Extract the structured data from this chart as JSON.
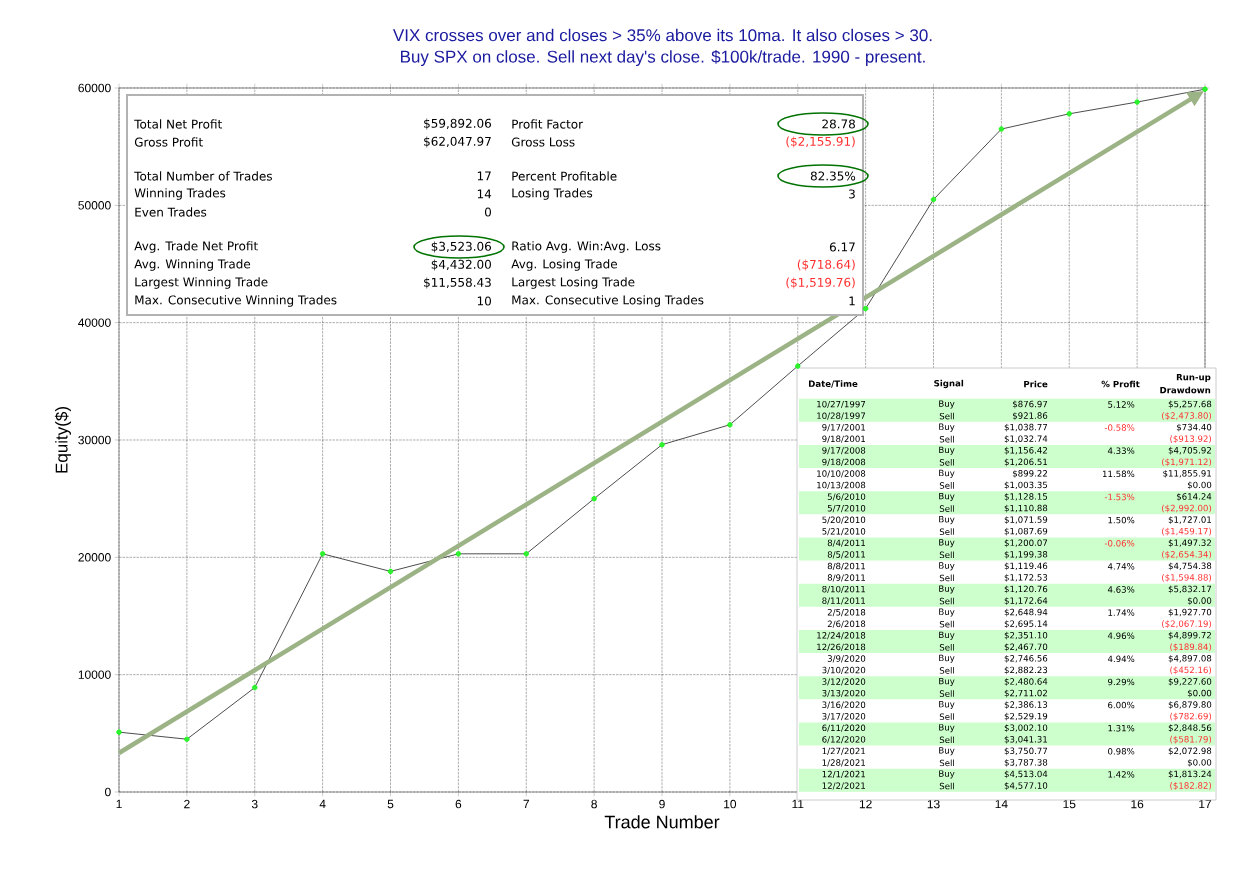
{
  "chart_data": {
    "type": "line",
    "title": "VIX crosses over and closes > 35% above its 10ma. It also closes > 30.",
    "subtitle": "Buy SPX on close. Sell next day's close. $100k/trade. 1990 - present.",
    "xlabel": "Trade Number",
    "ylabel": "Equity($)",
    "xlim": [
      1,
      17
    ],
    "ylim": [
      0,
      60000
    ],
    "xticks": [
      1,
      2,
      3,
      4,
      5,
      6,
      7,
      8,
      9,
      10,
      11,
      12,
      13,
      14,
      15,
      16,
      17
    ],
    "yticks": [
      0,
      10000,
      20000,
      30000,
      40000,
      50000,
      60000
    ],
    "grid": true,
    "marker": "circle",
    "series": [
      {
        "color": "#000000",
        "x": [
          1,
          2,
          3,
          4,
          5,
          6,
          7,
          8,
          9,
          10,
          11,
          12,
          13,
          14,
          15,
          16,
          17
        ],
        "values": [
          5100,
          4500,
          8900,
          20300,
          18800,
          20300,
          20300,
          25000,
          29600,
          31300,
          36300,
          41200,
          50500,
          56500,
          57800,
          58800,
          59900
        ]
      }
    ],
    "annotations": [
      "Total Net Profit",
      "$59,892.06",
      "Profit Factor",
      "28.78",
      "Gross Profit",
      "$62,047.97",
      "Gross Loss",
      "($2,155.91)",
      "Total Number of Trades",
      "17",
      "Percent Profitable",
      "82.35%",
      "Winning Trades",
      "14",
      "Losing Trades",
      "3",
      "Even Trades",
      "0",
      "Avg. Trade Net Profit",
      "$3,523.06",
      "Ratio Avg. Win:Avg. Loss",
      "6.17",
      "Avg. Winning Trade",
      "$4,432.00",
      "Avg. Losing Trade",
      "($718.64)",
      "Largest Winning Trade",
      "$11,558.43",
      "Largest Losing Trade",
      "($1,519.76)",
      "Max. Consecutive Winning Trades",
      "10",
      "Max. Consecutive Losing Trades",
      "1",
      "Date/Time",
      "Signal",
      "Price",
      "% Profit",
      "Run-up",
      "Drawdown",
      "10/27/1997",
      "Buy",
      "$876.97",
      "5.12%",
      "$5,257.68",
      "10/28/1997",
      "Sell",
      "$921.86",
      "($2,473.80)",
      "9/17/2001",
      "Buy",
      "$1,038.77",
      "-0.58%",
      "$734.40",
      "9/18/2001",
      "Sell",
      "$1,032.74",
      "($913.92)",
      "9/17/2008",
      "Buy",
      "$1,156.42",
      "4.33%",
      "$4,705.92",
      "9/18/2008",
      "Sell",
      "$1,206.51",
      "($1,971.12)",
      "10/10/2008",
      "Buy",
      "$899.22",
      "11.58%",
      "$11,855.91",
      "10/13/2008",
      "Sell",
      "$1,003.35",
      "$0.00",
      "5/6/2010",
      "Buy",
      "$1,128.15",
      "-1.53%",
      "$614.24",
      "5/7/2010",
      "Sell",
      "$1,110.88",
      "($2,992.00)",
      "5/20/2010",
      "Buy",
      "$1,071.59",
      "1.50%",
      "$1,727.01",
      "5/21/2010",
      "Sell",
      "$1,087.69",
      "($1,459.17)",
      "8/4/2011",
      "Buy",
      "$1,200.07",
      "-0.06%",
      "$1,497.32",
      "8/5/2011",
      "Sell",
      "$1,199.38",
      "($2,654.34)",
      "8/8/2011",
      "Buy",
      "$1,119.46",
      "4.74%",
      "$4,754.38",
      "8/9/2011",
      "Sell",
      "$1,172.53",
      "($1,594.88)",
      "8/10/2011",
      "Buy",
      "$1,120.76",
      "4.63%",
      "$5,832.17",
      "8/11/2011",
      "Sell",
      "$1,172.64",
      "$0.00",
      "2/5/2018",
      "Buy",
      "$2,648.94",
      "1.74%",
      "$1,927.70",
      "2/6/2018",
      "Sell",
      "$2,695.14",
      "($2,067.19)",
      "12/24/2018",
      "Buy",
      "$2,351.10",
      "4.96%",
      "$4,899.72",
      "12/26/2018",
      "Sell",
      "$2,467.70",
      "($189.84)",
      "3/9/2020",
      "Buy",
      "$2,746.56",
      "4.94%",
      "$4,897.08",
      "3/10/2020",
      "Sell",
      "$2,882.23",
      "($452.16)",
      "3/12/2020",
      "Buy",
      "$2,480.64",
      "9.29%",
      "$9,227.60",
      "3/13/2020",
      "Sell",
      "$2,711.02",
      "$0.00",
      "3/16/2020",
      "Buy",
      "$2,386.13",
      "6.00%",
      "$6,879.80",
      "3/17/2020",
      "Sell",
      "$2,529.19",
      "($782.69)",
      "6/11/2020",
      "Buy",
      "$3,002.10",
      "1.31%",
      "$2,848.56",
      "6/12/2020",
      "Sell",
      "$3,041.31",
      "($581.79)",
      "1/27/2021",
      "Buy",
      "$3,750.77",
      "0.98%",
      "$2,072.98",
      "1/28/2021",
      "Sell",
      "$3,787.38",
      "$0.00",
      "12/1/2021",
      "Buy",
      "$4,513.04",
      "1.42%",
      "$1,813.24",
      "12/2/2021",
      "Sell",
      "$4,577.10",
      "($182.82)"
    ]
  }
}
